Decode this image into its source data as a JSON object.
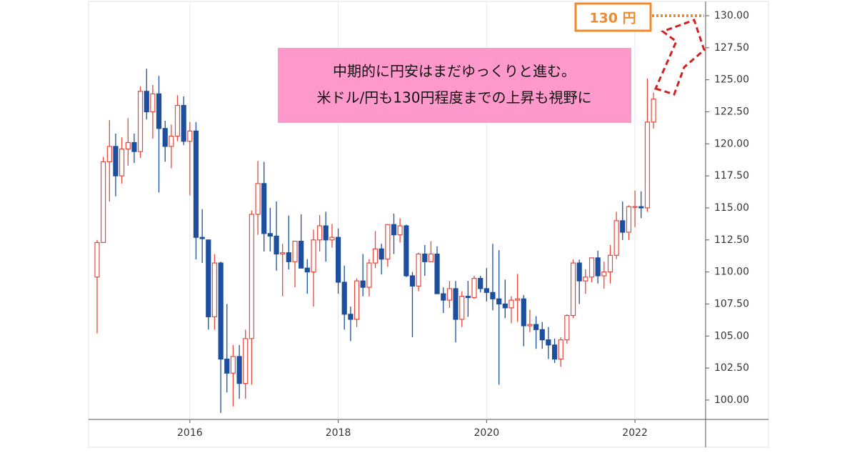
{
  "chart_data": {
    "type": "candlestick",
    "x": [
      2014.75,
      2014.833,
      2014.917,
      2015,
      2015.083,
      2015.167,
      2015.25,
      2015.333,
      2015.417,
      2015.5,
      2015.583,
      2015.667,
      2015.75,
      2015.833,
      2015.917,
      2016,
      2016.083,
      2016.167,
      2016.25,
      2016.333,
      2016.417,
      2016.5,
      2016.583,
      2016.667,
      2016.75,
      2016.833,
      2016.917,
      2017,
      2017.083,
      2017.167,
      2017.25,
      2017.333,
      2017.417,
      2017.5,
      2017.583,
      2017.667,
      2017.75,
      2017.833,
      2017.917,
      2018,
      2018.083,
      2018.167,
      2018.25,
      2018.333,
      2018.417,
      2018.5,
      2018.583,
      2018.667,
      2018.75,
      2018.833,
      2018.917,
      2019,
      2019.083,
      2019.167,
      2019.25,
      2019.333,
      2019.417,
      2019.5,
      2019.583,
      2019.667,
      2019.75,
      2019.833,
      2019.917,
      2020,
      2020.083,
      2020.167,
      2020.25,
      2020.333,
      2020.417,
      2020.5,
      2020.583,
      2020.667,
      2020.75,
      2020.833,
      2020.917,
      2021,
      2021.083,
      2021.167,
      2021.25,
      2021.333,
      2021.417,
      2021.5,
      2021.583,
      2021.667,
      2021.75,
      2021.833,
      2021.917,
      2022,
      2022.083,
      2022.167,
      2022.25
    ],
    "open": [
      109.6,
      112.3,
      118.6,
      119.8,
      117.5,
      119.6,
      120.1,
      119.4,
      124.1,
      122.5,
      123.9,
      121.2,
      119.8,
      120.6,
      123.0,
      120.2,
      121.0,
      112.7,
      112.5,
      106.5,
      110.7,
      103.2,
      102.1,
      103.4,
      101.3,
      104.8,
      114.5,
      116.9,
      113.0,
      112.8,
      111.4,
      111.5,
      110.8,
      112.4,
      110.3,
      110.0,
      112.5,
      113.6,
      112.5,
      112.7,
      109.2,
      106.7,
      106.3,
      109.3,
      108.8,
      110.7,
      111.8,
      111.0,
      113.7,
      112.9,
      113.6,
      109.7,
      108.9,
      111.4,
      110.8,
      111.4,
      108.3,
      107.8,
      108.7,
      106.3,
      108.1,
      108.0,
      109.5,
      108.7,
      108.4,
      107.9,
      107.5,
      107.2,
      107.8,
      107.9,
      105.8,
      105.9,
      105.5,
      104.7,
      104.3,
      103.2,
      104.7,
      106.6,
      110.7,
      109.3,
      109.6,
      111.1,
      109.7,
      110.0,
      111.3,
      114.0,
      113.1,
      115.1,
      115.1,
      115.0,
      121.7
    ],
    "high": [
      112.5,
      118.98,
      121.85,
      120.8,
      120.5,
      122.0,
      120.8,
      124.5,
      125.86,
      124.6,
      125.3,
      121.8,
      121.5,
      123.8,
      123.7,
      121.7,
      121.7,
      114.9,
      112.5,
      111.4,
      110.8,
      107.5,
      104.3,
      104.3,
      105.5,
      114.8,
      118.66,
      118.6,
      115.0,
      115.5,
      112.2,
      114.4,
      112.4,
      114.5,
      111.0,
      113.3,
      114.45,
      114.7,
      113.75,
      113.4,
      110.5,
      107.3,
      109.5,
      111.4,
      111.0,
      113.2,
      112.2,
      113.7,
      114.55,
      114.2,
      113.7,
      110.0,
      111.5,
      112.1,
      112.4,
      112.0,
      108.8,
      109.3,
      109.3,
      108.5,
      109.3,
      109.7,
      109.7,
      110.3,
      112.2,
      111.7,
      109.4,
      108.1,
      109.85,
      108.2,
      107.05,
      106.55,
      106.1,
      105.7,
      104.8,
      104.9,
      106.7,
      110.97,
      110.96,
      110.2,
      111.1,
      111.65,
      110.8,
      112.1,
      114.7,
      115.5,
      115.2,
      116.35,
      116.3,
      125.1,
      124.0
    ],
    "low": [
      105.2,
      112.6,
      115.5,
      115.9,
      116.9,
      118.3,
      118.5,
      118.9,
      121.9,
      120.4,
      116.2,
      118.6,
      118.1,
      120.2,
      119.9,
      115.98,
      110.98,
      110.7,
      105.5,
      105.5,
      99.0,
      100.6,
      99.5,
      100.1,
      100.1,
      101.2,
      112.9,
      111.6,
      111.6,
      110.1,
      108.1,
      110.2,
      108.8,
      110.6,
      108.3,
      107.3,
      111.6,
      110.8,
      111.9,
      108.3,
      105.5,
      104.6,
      105.7,
      108.1,
      108.1,
      110.3,
      109.8,
      110.4,
      111.4,
      112.3,
      109.6,
      104.9,
      108.5,
      109.7,
      110.8,
      108.3,
      106.8,
      107.2,
      104.5,
      105.7,
      106.5,
      107.9,
      108.4,
      107.7,
      107.0,
      101.2,
      106.4,
      105.99,
      106.1,
      104.2,
      105.3,
      104.0,
      104.0,
      103.2,
      102.9,
      102.6,
      104.4,
      106.4,
      107.5,
      108.3,
      109.2,
      109.1,
      108.7,
      109.1,
      111.0,
      112.5,
      112.5,
      113.5,
      114.2,
      114.7,
      121.2
    ],
    "close": [
      112.3,
      118.6,
      119.8,
      117.5,
      119.6,
      120.1,
      119.4,
      124.1,
      122.5,
      123.9,
      121.2,
      119.8,
      120.6,
      123.0,
      120.2,
      121.0,
      112.7,
      112.6,
      106.5,
      110.7,
      103.2,
      102.1,
      103.4,
      101.3,
      104.8,
      114.5,
      116.9,
      113.0,
      112.8,
      111.4,
      111.5,
      110.8,
      112.4,
      110.3,
      110.0,
      112.5,
      113.6,
      112.5,
      112.7,
      109.2,
      106.7,
      106.3,
      109.3,
      108.8,
      110.7,
      111.8,
      111.0,
      113.7,
      112.9,
      113.6,
      109.7,
      108.9,
      111.4,
      110.8,
      111.4,
      108.3,
      107.8,
      108.7,
      106.3,
      108.1,
      108.0,
      109.5,
      108.7,
      108.4,
      107.9,
      107.5,
      107.2,
      107.8,
      107.9,
      105.8,
      105.9,
      105.5,
      104.7,
      104.3,
      103.2,
      104.7,
      106.6,
      110.7,
      109.3,
      109.6,
      111.1,
      109.7,
      110.0,
      111.3,
      114.0,
      113.1,
      115.1,
      115.1,
      115.0,
      121.7,
      123.5
    ],
    "up_color": "#e8473b",
    "down_color": "#1d4f9e",
    "xlim": [
      2014.654,
      2022.952
    ],
    "xticks": [
      2016,
      2018,
      2020,
      2022
    ],
    "ylim": [
      98.49,
      131.06
    ],
    "yticks": [
      {
        "value": 100,
        "label": "100.00"
      },
      {
        "value": 102.5,
        "label": "102.50"
      },
      {
        "value": 105,
        "label": "105.00"
      },
      {
        "value": 107.5,
        "label": "107.50"
      },
      {
        "value": 110,
        "label": "110.00"
      },
      {
        "value": 112.5,
        "label": "112.50"
      },
      {
        "value": 115,
        "label": "115.00"
      },
      {
        "value": 117.5,
        "label": "117.50"
      },
      {
        "value": 120,
        "label": "120.00"
      },
      {
        "value": 122.5,
        "label": "122.50"
      },
      {
        "value": 125,
        "label": "125.00"
      },
      {
        "value": 127.5,
        "label": "127.50"
      },
      {
        "value": 130,
        "label": "130.00"
      }
    ],
    "annotations": [
      {
        "value": 130,
        "label": "130 円"
      }
    ],
    "note_lines": [
      "中期的に円安はまだゆっくりと進む。",
      "米ドル/円も130円程度までの上昇も視野に"
    ]
  }
}
